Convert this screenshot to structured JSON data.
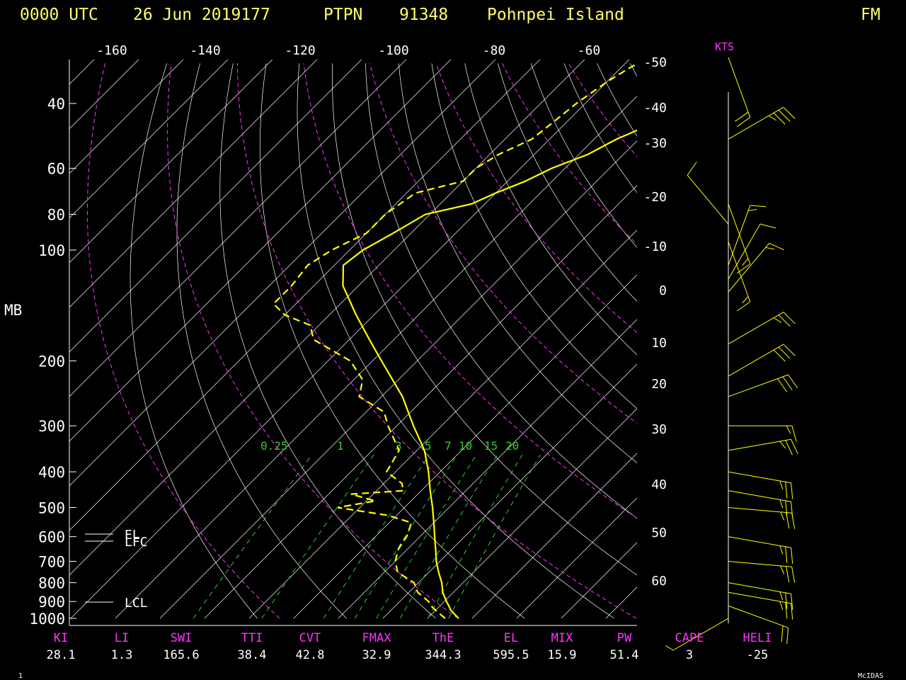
{
  "header": {
    "time": "0000 UTC",
    "date": "26 Jun 2019177",
    "station_id": "PTPN",
    "station_number": "91348",
    "station_name": "Pohnpei Island",
    "tag": "FM"
  },
  "footer": {
    "left": "1",
    "right": "McIDAS"
  },
  "units": {
    "pressure": "MB",
    "wind": "KTS"
  },
  "colors": {
    "background": "#000000",
    "temperature": "#ffff00",
    "dewpoint": "#ffff00",
    "grid": "#ffffff",
    "adiabat": "#ff33ff",
    "mixing_ratio": "#33cc33",
    "index_name": "#ff33ff",
    "index_value": "#ffffff",
    "header": "#ffff66",
    "wind_barb": "#ffff00"
  },
  "chart_data": {
    "type": "line",
    "y_scale": "log-pressure",
    "ylim": [
      1000,
      30
    ],
    "pressure_labels": [
      "40",
      "60",
      "80",
      "100",
      "200",
      "300",
      "400",
      "500",
      "600",
      "700",
      "800",
      "900",
      "1000"
    ],
    "top_temperature_labels": [
      "-160",
      "-140",
      "-120",
      "-100",
      "-80",
      "-60"
    ],
    "right_temperature_labels": [
      "-50",
      "-40",
      "-30",
      "-20",
      "-10",
      "0",
      "10",
      "20",
      "30",
      "40",
      "50",
      "60"
    ],
    "mixing_ratio_labels": [
      "0.25",
      "1",
      "3",
      "5",
      "7",
      "10",
      "15",
      "20"
    ],
    "level_markers": [
      "EL",
      "LFC",
      "LCL"
    ],
    "series": [
      {
        "name": "temperature",
        "points": [
          [
            1000,
            27.0
          ],
          [
            975,
            25.2
          ],
          [
            950,
            23.4
          ],
          [
            925,
            22.0
          ],
          [
            900,
            20.5
          ],
          [
            850,
            17.6
          ],
          [
            800,
            15.2
          ],
          [
            750,
            12.2
          ],
          [
            700,
            9.2
          ],
          [
            650,
            6.4
          ],
          [
            600,
            3.3
          ],
          [
            550,
            0.0
          ],
          [
            500,
            -3.7
          ],
          [
            450,
            -8.0
          ],
          [
            400,
            -12.6
          ],
          [
            350,
            -18.3
          ],
          [
            300,
            -26.3
          ],
          [
            250,
            -35.3
          ],
          [
            200,
            -48.0
          ],
          [
            175,
            -55.5
          ],
          [
            150,
            -64.0
          ],
          [
            125,
            -73.5
          ],
          [
            110,
            -78.0
          ],
          [
            100,
            -77.0
          ],
          [
            90,
            -74.0
          ],
          [
            80,
            -71.0
          ],
          [
            75,
            -63.0
          ],
          [
            70,
            -60.0
          ],
          [
            65,
            -56.0
          ],
          [
            60,
            -53.0
          ],
          [
            55,
            -48.0
          ],
          [
            50,
            -45.0
          ],
          [
            45,
            -40.0
          ],
          [
            40,
            -36.0
          ],
          [
            35,
            -33.0
          ],
          [
            30,
            -30.0
          ]
        ]
      },
      {
        "name": "dewpoint",
        "points": [
          [
            1000,
            24.0
          ],
          [
            975,
            22.0
          ],
          [
            950,
            20.0
          ],
          [
            925,
            18.0
          ],
          [
            900,
            16.5
          ],
          [
            850,
            12.0
          ],
          [
            800,
            9.0
          ],
          [
            750,
            3.0
          ],
          [
            700,
            0.0
          ],
          [
            650,
            -2.0
          ],
          [
            600,
            -3.0
          ],
          [
            550,
            -5.0
          ],
          [
            525,
            -12.0
          ],
          [
            500,
            -25.0
          ],
          [
            480,
            -18.0
          ],
          [
            460,
            -25.0
          ],
          [
            450,
            -14.0
          ],
          [
            430,
            -16.0
          ],
          [
            400,
            -22.0
          ],
          [
            350,
            -24.0
          ],
          [
            300,
            -32.0
          ],
          [
            275,
            -36.0
          ],
          [
            250,
            -45.0
          ],
          [
            225,
            -48.0
          ],
          [
            200,
            -55.0
          ],
          [
            175,
            -68.0
          ],
          [
            160,
            -72.0
          ],
          [
            150,
            -80.0
          ],
          [
            140,
            -85.0
          ],
          [
            125,
            -85.0
          ],
          [
            110,
            -86.0
          ],
          [
            100,
            -84.0
          ],
          [
            90,
            -80.0
          ],
          [
            80,
            -80.0
          ],
          [
            70,
            -78.0
          ],
          [
            65,
            -70.0
          ],
          [
            60,
            -70.0
          ],
          [
            55,
            -68.0
          ],
          [
            50,
            -64.0
          ],
          [
            45,
            -63.0
          ],
          [
            40,
            -62.0
          ],
          [
            35,
            -60.0
          ],
          [
            32,
            -58.0
          ],
          [
            30,
            -56.0
          ]
        ]
      }
    ],
    "wind_barbs": [
      {
        "p": 1000,
        "dir": 240,
        "spd": 5
      },
      {
        "p": 925,
        "dir": 110,
        "spd": 20
      },
      {
        "p": 850,
        "dir": 100,
        "spd": 25
      },
      {
        "p": 800,
        "dir": 100,
        "spd": 25
      },
      {
        "p": 700,
        "dir": 95,
        "spd": 25
      },
      {
        "p": 600,
        "dir": 100,
        "spd": 25
      },
      {
        "p": 500,
        "dir": 95,
        "spd": 25
      },
      {
        "p": 450,
        "dir": 100,
        "spd": 25
      },
      {
        "p": 400,
        "dir": 100,
        "spd": 25
      },
      {
        "p": 350,
        "dir": 80,
        "spd": 25
      },
      {
        "p": 300,
        "dir": 90,
        "spd": 15
      },
      {
        "p": 250,
        "dir": 70,
        "spd": 30
      },
      {
        "p": 220,
        "dir": 60,
        "spd": 30
      },
      {
        "p": 180,
        "dir": 60,
        "spd": 25
      },
      {
        "p": 130,
        "dir": 40,
        "spd": 15
      },
      {
        "p": 120,
        "dir": 30,
        "spd": 10
      },
      {
        "p": 110,
        "dir": 20,
        "spd": 15
      },
      {
        "p": 95,
        "dir": 160,
        "spd": 15
      },
      {
        "p": 85,
        "dir": 320,
        "spd": 10
      },
      {
        "p": 75,
        "dir": 160,
        "spd": 15
      },
      {
        "p": 50,
        "dir": 60,
        "spd": 35
      },
      {
        "p": 30,
        "dir": 160,
        "spd": 20
      }
    ]
  },
  "indices": [
    {
      "name": "KI",
      "value": "28.1"
    },
    {
      "name": "LI",
      "value": "1.3"
    },
    {
      "name": "SWI",
      "value": "165.6"
    },
    {
      "name": "TTI",
      "value": "38.4"
    },
    {
      "name": "CVT",
      "value": "42.8"
    },
    {
      "name": "FMAX",
      "value": "32.9"
    },
    {
      "name": "ThE",
      "value": "344.3"
    },
    {
      "name": "EL",
      "value": "595.5"
    },
    {
      "name": "MIX",
      "value": "15.9"
    },
    {
      "name": "PW",
      "value": "51.4"
    },
    {
      "name": "CAPE",
      "value": "3"
    },
    {
      "name": "HELI",
      "value": "-25"
    }
  ]
}
